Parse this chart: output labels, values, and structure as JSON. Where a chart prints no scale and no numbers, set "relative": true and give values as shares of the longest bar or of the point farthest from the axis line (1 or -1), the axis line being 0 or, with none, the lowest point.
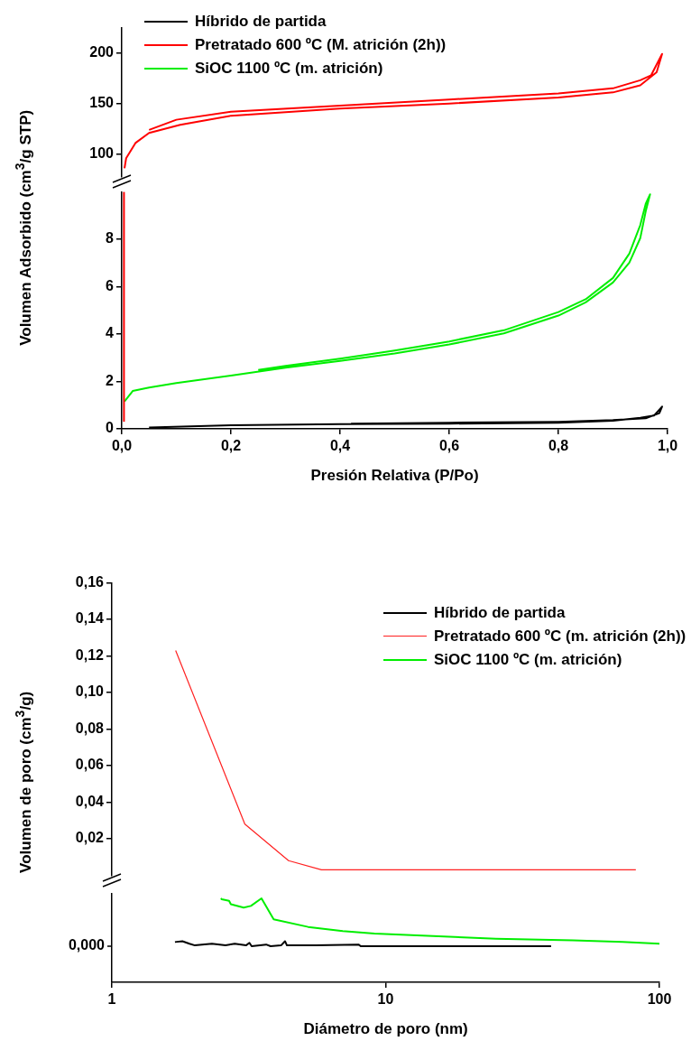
{
  "chart_data": [
    {
      "type": "line",
      "ylabel": "Volumen Adsorbido (cm$^{3}$/g STP)",
      "legend": "top left",
      "tick_labels": "y",
      "xlim": [
        0,
        1.0
      ],
      "ylim": [
        78,
        225
      ],
      "yticks": [
        100,
        150,
        200
      ],
      "series": [
        {
          "name": "Híbrido de partida",
          "color": "#000000"
        },
        {
          "name": "Pretratado 600 ºC (M. atrición (2h))",
          "color": "#ff0000",
          "x": [
            0.005,
            0.008,
            0.025,
            0.05,
            0.107,
            0.2,
            0.4,
            0.6,
            0.8,
            0.9,
            0.95,
            0.98,
            0.99,
            0.97,
            0.95,
            0.9,
            0.8,
            0.6,
            0.4,
            0.2,
            0.1,
            0.05
          ],
          "values": [
            86,
            96,
            111,
            121,
            129,
            138,
            145,
            150,
            156,
            161,
            168,
            181,
            199,
            178,
            173,
            165,
            160,
            154,
            148,
            142,
            134,
            124
          ]
        },
        {
          "name": "SiOC 1100 ºC (m. atrición)",
          "color": "#00ee00"
        }
      ]
    },
    {
      "type": "line",
      "xlabel": "Presión Relativa (P/Po)",
      "xlim": [
        0,
        1.0
      ],
      "ylim": [
        0,
        10
      ],
      "yticks": [
        0,
        2,
        4,
        6,
        8
      ],
      "xticks": [
        {
          "value": 0,
          "label": "0,0"
        },
        {
          "value": 0.2,
          "label": "0,2"
        },
        {
          "value": 0.4,
          "label": "0,4"
        },
        {
          "value": 0.6,
          "label": "0,6"
        },
        {
          "value": 0.8,
          "label": "0,8"
        },
        {
          "value": 1.0,
          "label": "1,0"
        }
      ],
      "series": [
        {
          "color": "#000000",
          "x": [
            0.05,
            0.2,
            0.4,
            0.6,
            0.8,
            0.9,
            0.95,
            0.975,
            0.99,
            0.985,
            0.96,
            0.9,
            0.8,
            0.6,
            0.42
          ],
          "values": [
            0.06,
            0.15,
            0.2,
            0.22,
            0.26,
            0.34,
            0.47,
            0.56,
            0.94,
            0.66,
            0.45,
            0.37,
            0.3,
            0.26,
            0.22
          ]
        },
        {
          "color": "#ff0000",
          "x": [
            0.004,
            0.004
          ],
          "values": [
            0.3,
            10
          ]
        },
        {
          "color": "#00ee00",
          "x": [
            0.005,
            0.02,
            0.05,
            0.1,
            0.2,
            0.3,
            0.4,
            0.5,
            0.6,
            0.7,
            0.8,
            0.85,
            0.9,
            0.93,
            0.95,
            0.96,
            0.968,
            0.96,
            0.95,
            0.93,
            0.9,
            0.85,
            0.8,
            0.7,
            0.6,
            0.5,
            0.4,
            0.3,
            0.25
          ],
          "values": [
            1.16,
            1.6,
            1.74,
            1.93,
            2.25,
            2.58,
            2.87,
            3.18,
            3.56,
            4.03,
            4.78,
            5.34,
            6.18,
            7.02,
            8.05,
            9.18,
            9.9,
            9.5,
            8.6,
            7.4,
            6.37,
            5.47,
            4.93,
            4.16,
            3.69,
            3.31,
            2.96,
            2.66,
            2.49
          ]
        }
      ]
    },
    {
      "type": "line",
      "ylabel": "Volumen de poro (cm$^{3}$/g)",
      "legend": "top right",
      "tick_labels": "y",
      "log": "x",
      "xlim": [
        1,
        100
      ],
      "ylim": [
        0,
        0.16
      ],
      "yticks": [
        {
          "value": 0.02,
          "label": "0,02"
        },
        {
          "value": 0.04,
          "label": "0,04"
        },
        {
          "value": 0.06,
          "label": "0,06"
        },
        {
          "value": 0.08,
          "label": "0,08"
        },
        {
          "value": 0.1,
          "label": "0,10"
        },
        {
          "value": 0.12,
          "label": "0,12"
        },
        {
          "value": 0.14,
          "label": "0,14"
        },
        {
          "value": 0.16,
          "label": "0,16"
        }
      ],
      "series": [
        {
          "name": "Híbrido de partida",
          "color": "#000000"
        },
        {
          "name": "Pretratado 600 ºC (m. atrición (2h))",
          "color": "#ff2020",
          "x": [
            1.71,
            3.06,
            4.42,
            5.83,
            7.24,
            82
          ],
          "values": [
            0.123,
            0.028,
            0.008,
            0.003,
            0.003,
            0.003
          ]
        },
        {
          "name": "SiOC 1100 ºC (m. atrición)",
          "color": "#00ee00"
        }
      ]
    },
    {
      "type": "line",
      "xlabel": "Diámetro de poro (nm)",
      "relative": true,
      "tick_labels": "x",
      "log": "x",
      "xlim": [
        1,
        100
      ],
      "xticks": [
        1,
        10,
        100
      ],
      "annotations": [
        "0,000"
      ],
      "series": [
        {
          "color": "#000000",
          "x": [
            1.7,
            1.81,
            1.92,
            2.01,
            2.32,
            2.6,
            2.81,
            3.09,
            3.18,
            3.24,
            3.66,
            3.8,
            4.15,
            4.29,
            4.36,
            5.55,
            7.96,
            8.11,
            40.2
          ],
          "values": [
            0.48,
            0.49,
            0.46,
            0.44,
            0.46,
            0.44,
            0.46,
            0.44,
            0.47,
            0.43,
            0.45,
            0.43,
            0.44,
            0.49,
            0.44,
            0.44,
            0.45,
            0.43,
            0.43
          ]
        },
        {
          "color": "#00ee00",
          "x": [
            2.5,
            2.52,
            2.68,
            2.72,
            3.03,
            3.22,
            3.52,
            3.9,
            5.21,
            6.97,
            9.1,
            14.9,
            25.3,
            48.3,
            73.3,
            100
          ],
          "values": [
            1.0,
            0.99,
            0.97,
            0.93,
            0.89,
            0.91,
            1.0,
            0.75,
            0.66,
            0.61,
            0.58,
            0.55,
            0.52,
            0.5,
            0.48,
            0.46
          ]
        }
      ]
    }
  ]
}
